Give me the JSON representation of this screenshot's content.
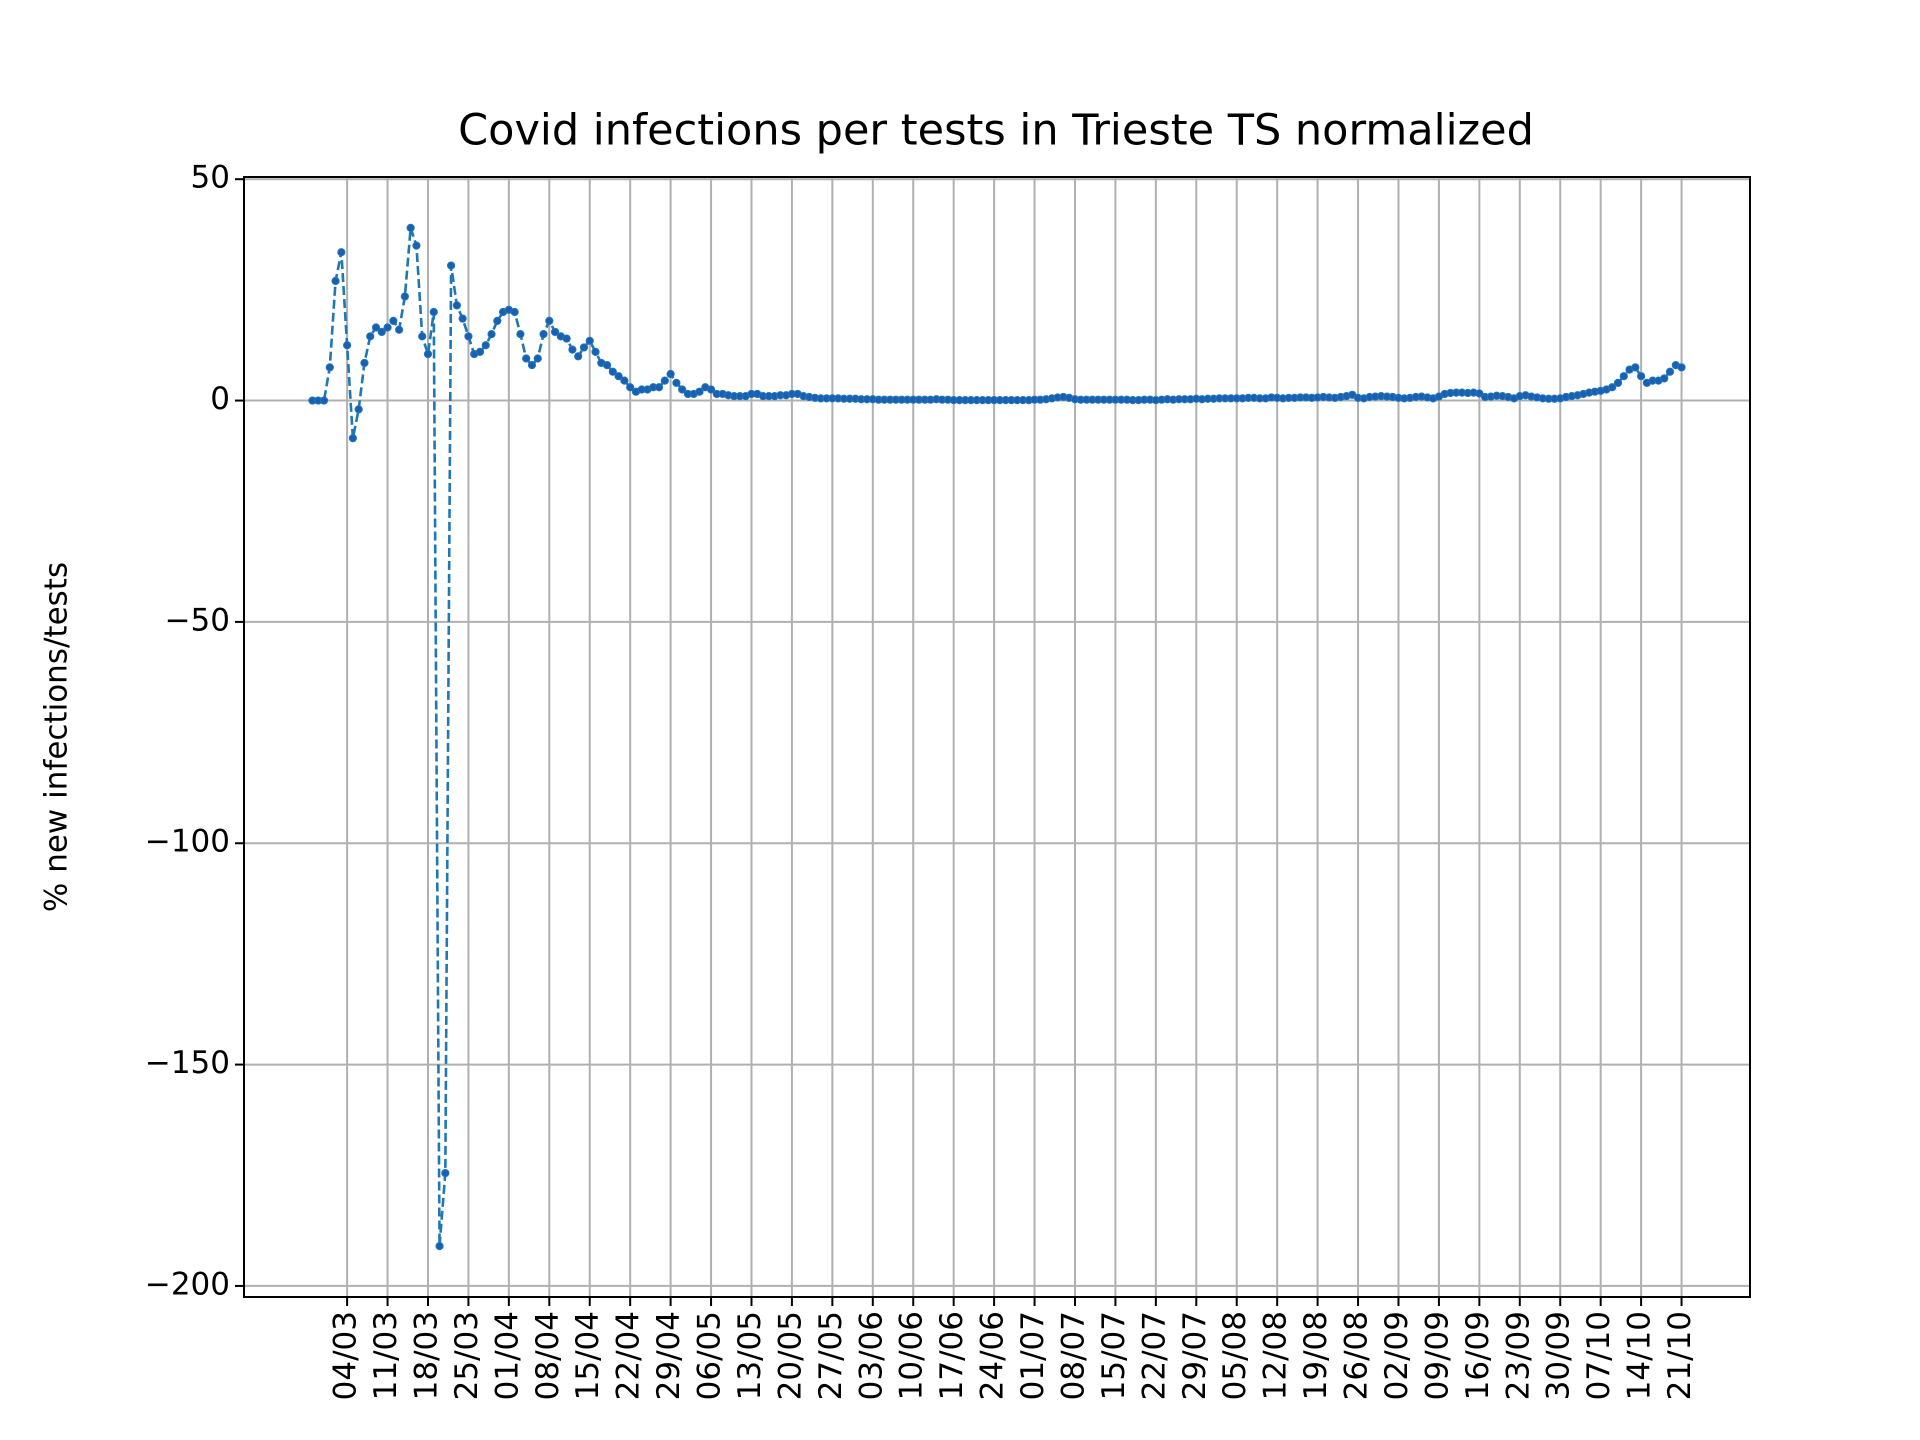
{
  "chart_data": {
    "type": "line",
    "title": "Covid infections per tests in Trieste TS normalized",
    "y_label": "% new infections/tests",
    "x": [
      "27/02",
      "28/02",
      "29/02",
      "01/03",
      "02/03",
      "03/03",
      "04/03",
      "05/03",
      "06/03",
      "07/03",
      "08/03",
      "09/03",
      "10/03",
      "11/03",
      "12/03",
      "13/03",
      "14/03",
      "15/03",
      "16/03",
      "17/03",
      "18/03",
      "19/03",
      "20/03",
      "21/03",
      "22/03",
      "23/03",
      "24/03",
      "25/03",
      "26/03",
      "27/03",
      "28/03",
      "29/03",
      "30/03",
      "31/03",
      "01/04",
      "02/04",
      "03/04",
      "04/04",
      "05/04",
      "06/04",
      "07/04",
      "08/04",
      "09/04",
      "10/04",
      "11/04",
      "12/04",
      "13/04",
      "14/04",
      "15/04",
      "16/04",
      "17/04",
      "18/04",
      "19/04",
      "20/04",
      "21/04",
      "22/04",
      "23/04",
      "24/04",
      "25/04",
      "26/04",
      "27/04",
      "28/04",
      "29/04",
      "30/04",
      "01/05",
      "02/05",
      "03/05",
      "04/05",
      "05/05",
      "06/05",
      "07/05",
      "08/05",
      "09/05",
      "10/05",
      "11/05",
      "12/05",
      "13/05",
      "14/05",
      "15/05",
      "16/05",
      "17/05",
      "18/05",
      "19/05",
      "20/05",
      "21/05",
      "22/05",
      "23/05",
      "24/05",
      "25/05",
      "26/05",
      "27/05",
      "28/05",
      "29/05",
      "30/05",
      "31/05",
      "01/06",
      "02/06",
      "03/06",
      "04/06",
      "05/06",
      "06/06",
      "07/06",
      "08/06",
      "09/06",
      "10/06",
      "11/06",
      "12/06",
      "13/06",
      "14/06",
      "15/06",
      "16/06",
      "17/06",
      "18/06",
      "19/06",
      "20/06",
      "21/06",
      "22/06",
      "23/06",
      "24/06",
      "25/06",
      "26/06",
      "27/06",
      "28/06",
      "29/06",
      "30/06",
      "01/07",
      "02/07",
      "03/07",
      "04/07",
      "05/07",
      "06/07",
      "07/07",
      "08/07",
      "09/07",
      "10/07",
      "11/07",
      "12/07",
      "13/07",
      "14/07",
      "15/07",
      "16/07",
      "17/07",
      "18/07",
      "19/07",
      "20/07",
      "21/07",
      "22/07",
      "23/07",
      "24/07",
      "25/07",
      "26/07",
      "27/07",
      "28/07",
      "29/07",
      "30/07",
      "31/07",
      "01/08",
      "02/08",
      "03/08",
      "04/08",
      "05/08",
      "06/08",
      "07/08",
      "08/08",
      "09/08",
      "10/08",
      "11/08",
      "12/08",
      "13/08",
      "14/08",
      "15/08",
      "16/08",
      "17/08",
      "18/08",
      "19/08",
      "20/08",
      "21/08",
      "22/08",
      "23/08",
      "24/08",
      "25/08",
      "26/08",
      "27/08",
      "28/08",
      "29/08",
      "30/08",
      "31/08",
      "01/09",
      "02/09",
      "03/09",
      "04/09",
      "05/09",
      "06/09",
      "07/09",
      "08/09",
      "09/09",
      "10/09",
      "11/09",
      "12/09",
      "13/09",
      "14/09",
      "15/09",
      "16/09",
      "17/09",
      "18/09",
      "19/09",
      "20/09",
      "21/09",
      "22/09",
      "23/09",
      "24/09",
      "25/09",
      "26/09",
      "27/09",
      "28/09",
      "29/09",
      "30/09",
      "01/10",
      "02/10",
      "03/10",
      "04/10",
      "05/10",
      "06/10",
      "07/10",
      "08/10",
      "09/10",
      "10/10",
      "11/10",
      "12/10",
      "13/10",
      "14/10",
      "15/10",
      "16/10",
      "17/10",
      "18/10",
      "19/10",
      "20/10",
      "21/10"
    ],
    "values": [
      0,
      0,
      0,
      7.5,
      27,
      33.5,
      12.5,
      -8.5,
      -2,
      8.5,
      14.5,
      16.5,
      15.5,
      16.5,
      18,
      16,
      23.5,
      39,
      35,
      14.5,
      10.5,
      20,
      -191,
      -174.5,
      30.5,
      21.5,
      18.5,
      14.5,
      10.5,
      11,
      12.5,
      15,
      18,
      20,
      20.5,
      20,
      15,
      9.5,
      8,
      9.5,
      15,
      18,
      15.5,
      14.5,
      14,
      11.5,
      10,
      12,
      13.5,
      11,
      8.5,
      8,
      6.5,
      5.5,
      4.5,
      3,
      2,
      2.5,
      2.5,
      3,
      3,
      4.5,
      6,
      4,
      2.5,
      1.5,
      1.5,
      2,
      3,
      2.5,
      1.5,
      1.5,
      1.2,
      1,
      1,
      1,
      1.5,
      1.5,
      1,
      1,
      1,
      1.2,
      1.2,
      1.5,
      1.5,
      1,
      0.8,
      0.6,
      0.5,
      0.5,
      0.5,
      0.5,
      0.4,
      0.4,
      0.4,
      0.3,
      0.3,
      0.3,
      0.2,
      0.2,
      0.2,
      0.2,
      0.2,
      0.2,
      0.2,
      0.2,
      0.2,
      0.2,
      0.3,
      0.2,
      0.2,
      0.1,
      0.1,
      0.1,
      0.1,
      0.1,
      0.1,
      0.1,
      0.1,
      0.1,
      0.1,
      0.1,
      0.1,
      0.1,
      0.1,
      0.2,
      0.2,
      0.3,
      0.5,
      0.7,
      0.8,
      0.6,
      0.3,
      0.2,
      0.2,
      0.2,
      0.2,
      0.2,
      0.2,
      0.2,
      0.2,
      0.2,
      0.1,
      0.1,
      0.2,
      0.2,
      0.1,
      0.2,
      0.3,
      0.2,
      0.3,
      0.3,
      0.3,
      0.4,
      0.3,
      0.4,
      0.4,
      0.5,
      0.5,
      0.5,
      0.5,
      0.5,
      0.6,
      0.6,
      0.5,
      0.5,
      0.7,
      0.6,
      0.5,
      0.6,
      0.6,
      0.7,
      0.7,
      0.6,
      0.7,
      0.8,
      0.7,
      0.6,
      0.8,
      1,
      1.3,
      0.6,
      0.5,
      0.8,
      0.9,
      1,
      0.9,
      0.8,
      0.6,
      0.5,
      0.6,
      0.8,
      0.9,
      0.7,
      0.5,
      0.9,
      1.5,
      1.7,
      1.8,
      1.8,
      1.7,
      1.8,
      1.6,
      0.8,
      0.9,
      1.1,
      1,
      0.8,
      0.5,
      1,
      1.2,
      0.9,
      0.7,
      0.5,
      0.4,
      0.4,
      0.5,
      0.8,
      1,
      1.2,
      1.5,
      1.8,
      2,
      2.2,
      2.5,
      3,
      4,
      5.5,
      7,
      7.5,
      5.5,
      4,
      4.5,
      4.5,
      5,
      6.5,
      8,
      7.5
    ],
    "color": "#1f77b4",
    "marker_color": "#1a5fb4",
    "xticks": [
      "04/03",
      "11/03",
      "18/03",
      "25/03",
      "01/04",
      "08/04",
      "15/04",
      "22/04",
      "29/04",
      "06/05",
      "13/05",
      "20/05",
      "27/05",
      "03/06",
      "10/06",
      "17/06",
      "24/06",
      "01/07",
      "08/07",
      "15/07",
      "22/07",
      "29/07",
      "05/08",
      "12/08",
      "19/08",
      "26/08",
      "02/09",
      "09/09",
      "16/09",
      "23/09",
      "30/09",
      "07/10",
      "14/10",
      "21/10"
    ],
    "ylim": [
      -202.5,
      50.5
    ],
    "yticks": [
      {
        "value": -200,
        "label": "−200"
      },
      {
        "value": -150,
        "label": "−150"
      },
      {
        "value": -100,
        "label": "−100"
      },
      {
        "value": -50,
        "label": "−50"
      },
      0,
      50
    ],
    "grid": true
  }
}
